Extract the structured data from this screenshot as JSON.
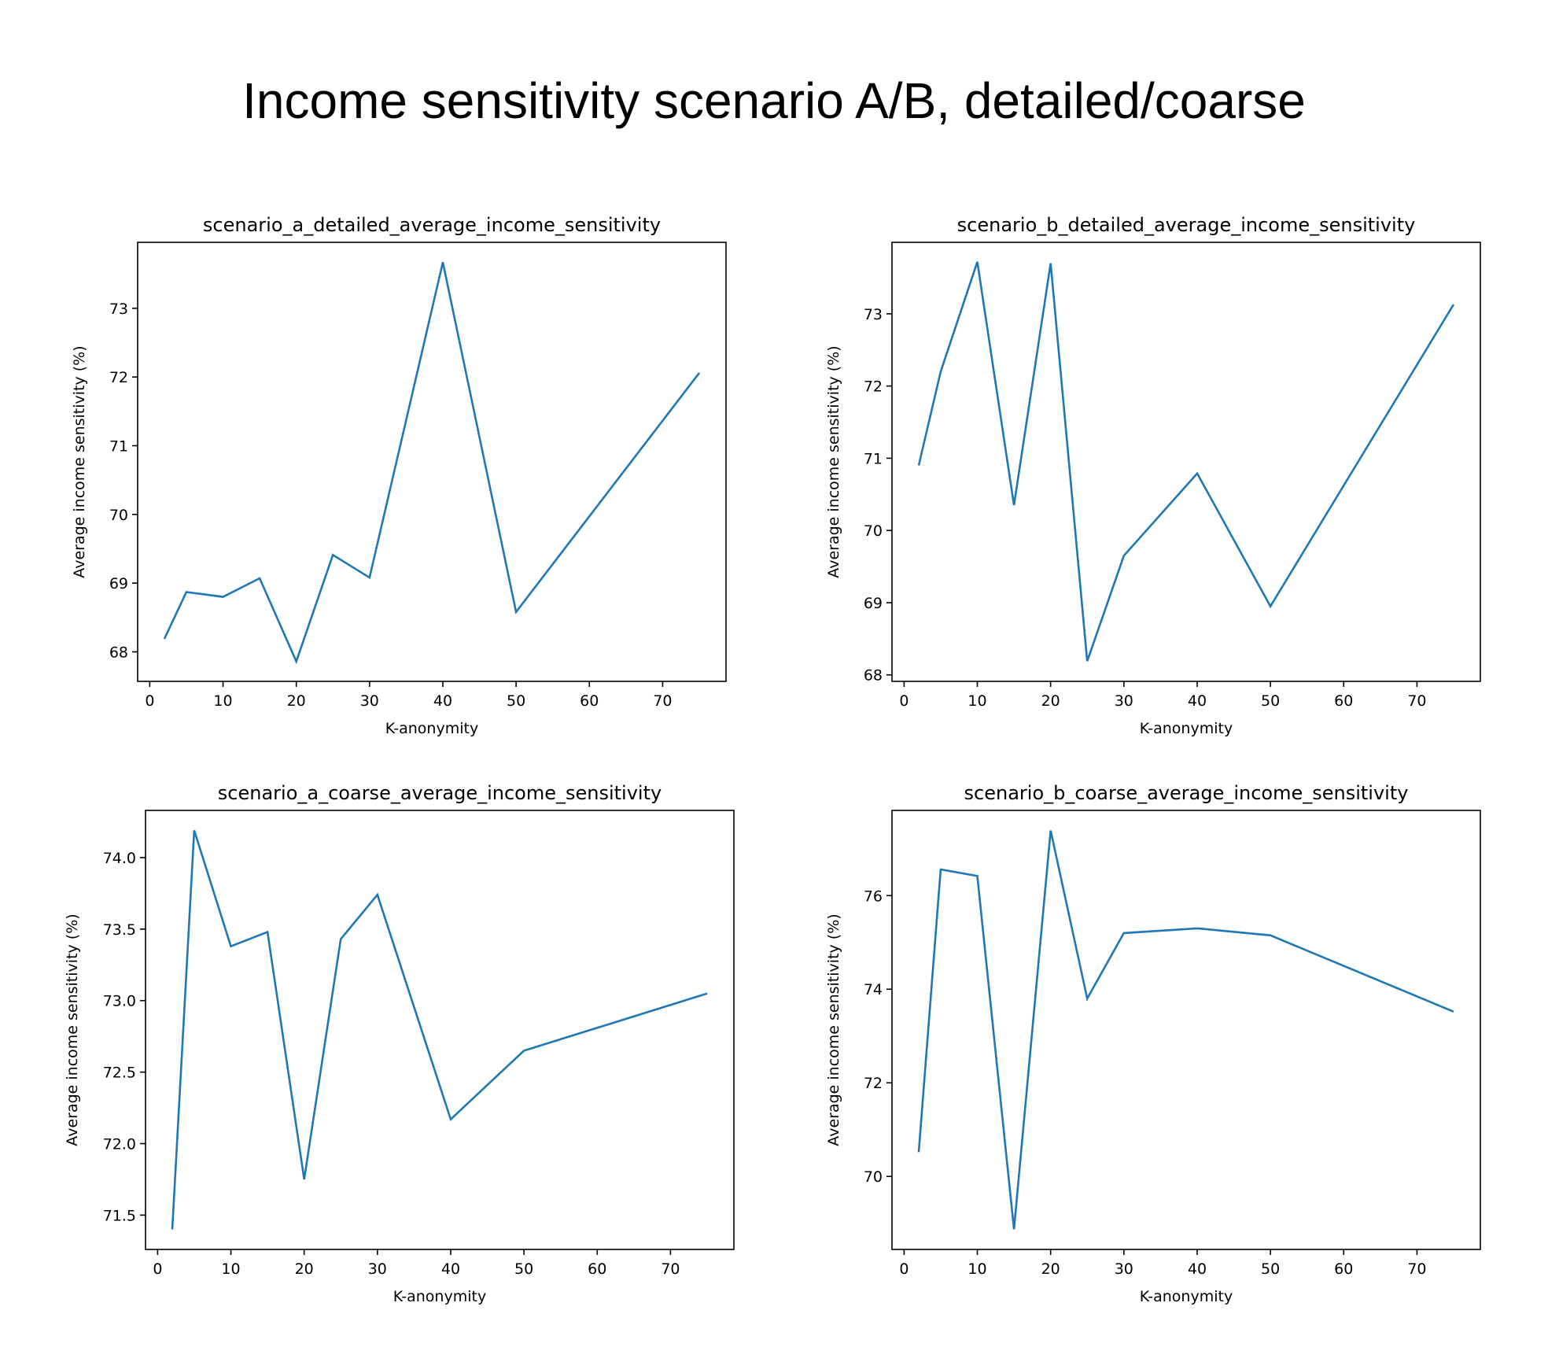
{
  "suptitle": "Income sensitivity scenario A/B, detailed/coarse",
  "line_color": "#1f77b4",
  "chart_data": [
    {
      "type": "line",
      "title": "scenario_a_detailed_average_income_sensitivity",
      "xlabel": "K-anonymity",
      "ylabel": "Average income sensitivity (%)",
      "x": [
        2,
        5,
        10,
        15,
        20,
        25,
        30,
        40,
        50,
        75
      ],
      "y": [
        68.19,
        68.87,
        68.8,
        69.07,
        67.86,
        69.41,
        69.08,
        73.67,
        68.58,
        72.06
      ],
      "xlim": [
        -1.65,
        78.65
      ],
      "ylim": [
        67.57,
        73.96
      ],
      "xticks": [
        0,
        10,
        20,
        30,
        40,
        50,
        60,
        70
      ],
      "yticks": [
        68,
        69,
        70,
        71,
        72,
        73
      ],
      "ytick_labels": [
        "68",
        "69",
        "70",
        "71",
        "72",
        "73"
      ],
      "grid": false
    },
    {
      "type": "line",
      "title": "scenario_b_detailed_average_income_sensitivity",
      "xlabel": "K-anonymity",
      "ylabel": "Average income sensitivity (%)",
      "x": [
        2,
        5,
        10,
        15,
        20,
        25,
        30,
        40,
        50,
        75
      ],
      "y": [
        70.9,
        72.2,
        73.72,
        70.35,
        73.7,
        68.19,
        69.65,
        70.79,
        68.95,
        73.13
      ],
      "xlim": [
        -1.65,
        78.65
      ],
      "ylim": [
        67.91,
        73.99
      ],
      "xticks": [
        0,
        10,
        20,
        30,
        40,
        50,
        60,
        70
      ],
      "yticks": [
        68,
        69,
        70,
        71,
        72,
        73
      ],
      "ytick_labels": [
        "68",
        "69",
        "70",
        "71",
        "72",
        "73"
      ],
      "grid": false
    },
    {
      "type": "line",
      "title": "scenario_a_coarse_average_income_sensitivity",
      "xlabel": "K-anonymity",
      "ylabel": "Average income sensitivity (%)",
      "x": [
        2,
        5,
        10,
        15,
        20,
        25,
        30,
        40,
        50,
        75
      ],
      "y": [
        71.4,
        74.19,
        73.38,
        73.48,
        71.75,
        73.43,
        73.74,
        72.17,
        72.65,
        73.05
      ],
      "xlim": [
        -1.65,
        78.65
      ],
      "ylim": [
        71.26,
        74.33
      ],
      "xticks": [
        0,
        10,
        20,
        30,
        40,
        50,
        60,
        70
      ],
      "yticks": [
        71.5,
        72.0,
        72.5,
        73.0,
        73.5,
        74.0
      ],
      "ytick_labels": [
        "71.5",
        "72.0",
        "72.5",
        "73.0",
        "73.5",
        "74.0"
      ],
      "grid": false
    },
    {
      "type": "line",
      "title": "scenario_b_coarse_average_income_sensitivity",
      "xlabel": "K-anonymity",
      "ylabel": "Average income sensitivity (%)",
      "x": [
        2,
        5,
        10,
        15,
        20,
        25,
        30,
        40,
        50,
        75
      ],
      "y": [
        70.52,
        76.56,
        76.42,
        68.87,
        77.39,
        73.8,
        75.2,
        75.3,
        75.15,
        73.52
      ],
      "xlim": [
        -1.65,
        78.65
      ],
      "ylim": [
        68.44,
        77.82
      ],
      "xticks": [
        0,
        10,
        20,
        30,
        40,
        50,
        60,
        70
      ],
      "yticks": [
        70,
        72,
        74,
        76
      ],
      "ytick_labels": [
        "70",
        "72",
        "74",
        "76"
      ],
      "grid": false
    }
  ]
}
